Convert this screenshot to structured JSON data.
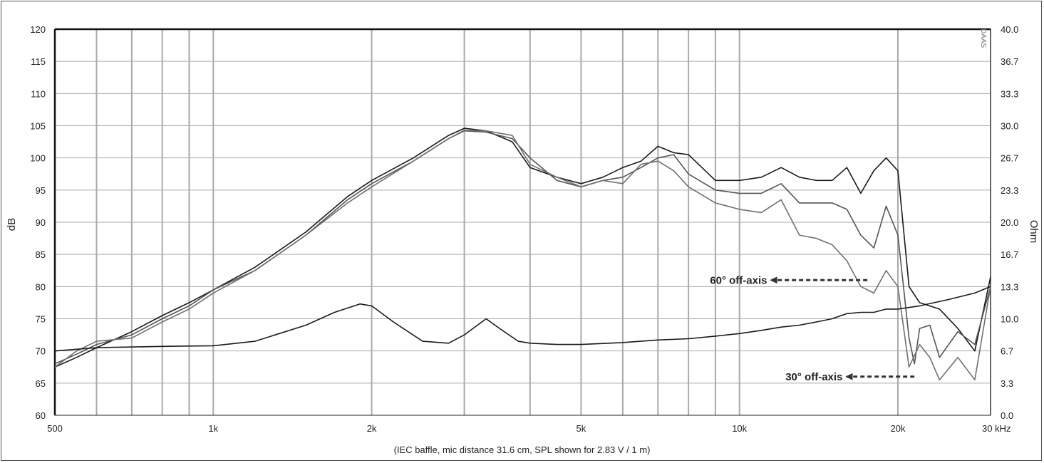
{
  "chart_data": {
    "type": "line",
    "xscale": "log",
    "xlim": [
      500,
      30000
    ],
    "ylim": [
      60,
      120
    ],
    "ylim_right": [
      0,
      40
    ],
    "grid": true,
    "ylabel": "dB",
    "ylabel_right": "Ohm",
    "xlabel_unit": "kHz",
    "caption": "(IEC baffle, mic distance 31.6 cm, SPL shown for 2.83 V / 1 m)",
    "watermark": "DAAS",
    "x_ticks": [
      {
        "value": 500,
        "label": "500"
      },
      {
        "value": 1000,
        "label": "1k"
      },
      {
        "value": 2000,
        "label": "2k"
      },
      {
        "value": 5000,
        "label": "5k"
      },
      {
        "value": 10000,
        "label": "10k"
      },
      {
        "value": 20000,
        "label": "20k"
      },
      {
        "value": 30000,
        "label": "30 kHz"
      }
    ],
    "y_ticks_left": [
      "60",
      "65",
      "70",
      "75",
      "80",
      "85",
      "90",
      "95",
      "100",
      "105",
      "110",
      "115",
      "120"
    ],
    "y_ticks_right": [
      "0.0",
      "3.3",
      "6.7",
      "10.0",
      "13.3",
      "16.7",
      "20.0",
      "23.3",
      "26.7",
      "30.0",
      "33.3",
      "36.7",
      "40.0"
    ],
    "series": [
      {
        "color": "#1a1a1a",
        "x": [
          500,
          550,
          600,
          700,
          800,
          900,
          1000,
          1200,
          1500,
          1800,
          2000,
          2400,
          2800,
          3000,
          3300,
          3700,
          4000,
          4500,
          5000,
          5500,
          6000,
          6500,
          7000,
          7500,
          8000,
          9000,
          10000,
          11000,
          12000,
          13000,
          14000,
          15000,
          16000,
          17000,
          18000,
          19000,
          20000,
          21000,
          22000,
          24000,
          26000,
          28000,
          30000
        ],
        "y": [
          67.5,
          69,
          70.5,
          73,
          75.5,
          77.5,
          79.5,
          83,
          88.5,
          94,
          96.5,
          100,
          103.5,
          104.6,
          104.2,
          102.5,
          98.5,
          97,
          96,
          97,
          98.5,
          99.5,
          101.8,
          100.8,
          100.5,
          96.5,
          96.5,
          97,
          98.5,
          97,
          96.5,
          96.5,
          98.5,
          94.5,
          98,
          100,
          98,
          80,
          77.5,
          76.5,
          73.5,
          70,
          81.5
        ]
      },
      {
        "color": "#555555",
        "x": [
          500,
          550,
          600,
          700,
          800,
          900,
          1000,
          1200,
          1500,
          1800,
          2000,
          2400,
          2800,
          3000,
          3300,
          3700,
          4000,
          4500,
          5000,
          5500,
          6000,
          6500,
          7000,
          7500,
          8000,
          9000,
          10000,
          11000,
          12000,
          13000,
          14000,
          15000,
          16000,
          17000,
          18000,
          19000,
          20000,
          21000,
          21500,
          22000,
          23000,
          24000,
          26000,
          28000,
          30000
        ],
        "y": [
          68,
          69.5,
          71,
          72.5,
          75,
          77,
          79.5,
          82.5,
          88,
          93.5,
          96,
          99.5,
          103,
          104.2,
          104,
          103,
          100,
          96.5,
          95.5,
          96.5,
          97,
          98.5,
          100,
          100.5,
          97.5,
          95,
          94.5,
          94.5,
          96,
          93,
          93,
          93,
          92,
          88,
          86,
          92.5,
          88,
          72,
          68,
          73.5,
          74,
          69,
          73,
          71,
          80
        ]
      },
      {
        "color": "#707070",
        "x": [
          500,
          550,
          600,
          700,
          800,
          900,
          1000,
          1200,
          1500,
          1800,
          2000,
          2400,
          2800,
          3000,
          3300,
          3700,
          4000,
          4500,
          5000,
          5500,
          6000,
          6500,
          7000,
          7500,
          8000,
          9000,
          10000,
          11000,
          12000,
          13000,
          14000,
          15000,
          16000,
          17000,
          18000,
          19000,
          20000,
          21000,
          22000,
          23000,
          24000,
          26000,
          28000,
          30000
        ],
        "y": [
          67.5,
          70,
          71.5,
          72,
          74.5,
          76.5,
          79,
          82.5,
          88,
          93,
          95.5,
          99.5,
          103,
          104.3,
          104.2,
          103.5,
          99,
          97,
          95.5,
          96.5,
          96,
          99,
          99.5,
          98,
          95.5,
          93,
          92,
          91.5,
          93.5,
          88,
          87.5,
          86.5,
          84,
          80,
          79,
          82.5,
          80,
          67.5,
          71,
          69,
          65.5,
          69,
          65.5,
          80
        ]
      },
      {
        "color": "#1a1a1a",
        "x": [
          500,
          600,
          800,
          1000,
          1200,
          1500,
          1700,
          1900,
          2000,
          2200,
          2500,
          2800,
          3000,
          3300,
          3500,
          3800,
          4000,
          4500,
          5000,
          6000,
          7000,
          8000,
          9000,
          10000,
          11000,
          12000,
          13000,
          14000,
          15000,
          16000,
          17000,
          18000,
          19000,
          20000,
          22000,
          25000,
          28000,
          30000
        ],
        "y": [
          70,
          70.5,
          70.7,
          70.8,
          71.5,
          74,
          76,
          77.3,
          77,
          74.5,
          71.5,
          71.2,
          72.5,
          75,
          73.5,
          71.5,
          71.2,
          71,
          71,
          71.3,
          71.7,
          71.9,
          72.3,
          72.7,
          73.2,
          73.7,
          74,
          74.5,
          75,
          75.8,
          76,
          76,
          76.5,
          76.5,
          77,
          78,
          79,
          80
        ]
      }
    ],
    "annotations": [
      {
        "text": "60° off-axis",
        "x": 7000,
        "y": 81,
        "arrow_to": 11500,
        "arrow_from": 17500
      },
      {
        "text": "30° off-axis",
        "x": 13500,
        "y": 66,
        "arrow_to": 16000,
        "arrow_from": 21500
      }
    ]
  }
}
